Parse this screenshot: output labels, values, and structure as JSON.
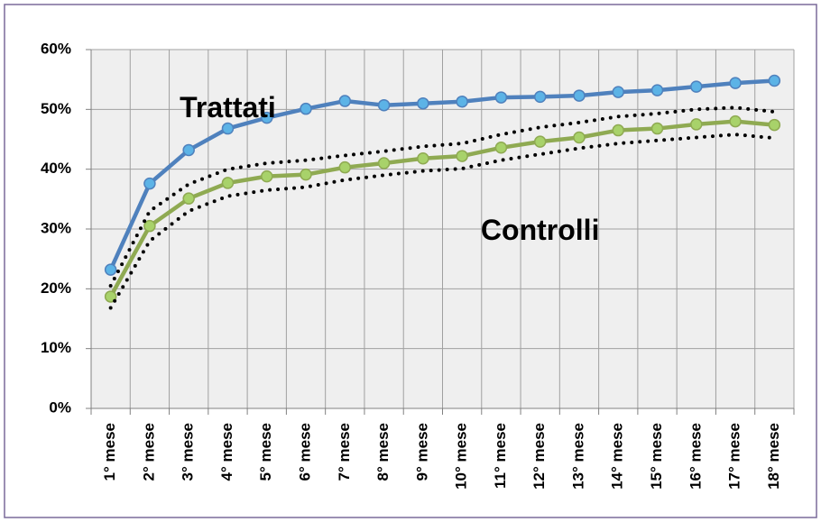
{
  "chart_data": {
    "type": "line",
    "categories": [
      "1° mese",
      "2° mese",
      "3° mese",
      "4° mese",
      "5° mese",
      "6° mese",
      "7° mese",
      "8° mese",
      "9° mese",
      "10° mese",
      "11° mese",
      "12° mese",
      "13° mese",
      "14° mese",
      "15° mese",
      "16° mese",
      "17° mese",
      "18° mese"
    ],
    "series": [
      {
        "color": "#4f81bd",
        "marker_color": "#5cb3e6",
        "style": "solid",
        "markers": true,
        "values": [
          23.2,
          37.6,
          43.2,
          46.8,
          48.6,
          50.1,
          51.4,
          50.7,
          51.0,
          51.3,
          52.0,
          52.1,
          52.3,
          52.9,
          53.2,
          53.8,
          54.4,
          54.8
        ]
      },
      {
        "color": "#8faa52",
        "marker_color": "#a8d26a",
        "style": "solid",
        "markers": true,
        "values": [
          18.7,
          30.5,
          35.1,
          37.7,
          38.8,
          39.1,
          40.3,
          41.0,
          41.8,
          42.2,
          43.6,
          44.6,
          45.3,
          46.5,
          46.8,
          47.5,
          48.0,
          47.4
        ]
      },
      {
        "color": "#000000",
        "style": "dotted",
        "markers": false,
        "values": [
          20.5,
          33.0,
          37.5,
          40.0,
          41.0,
          41.5,
          42.3,
          43.0,
          43.8,
          44.3,
          45.8,
          47.0,
          47.8,
          48.8,
          49.3,
          50.0,
          50.3,
          49.6
        ]
      },
      {
        "color": "#000000",
        "style": "dotted",
        "markers": false,
        "values": [
          16.8,
          28.0,
          33.0,
          35.5,
          36.5,
          37.0,
          38.2,
          39.0,
          39.7,
          40.1,
          41.5,
          42.5,
          43.5,
          44.3,
          44.8,
          45.3,
          45.8,
          45.2
        ]
      }
    ],
    "ylim": [
      0,
      60
    ],
    "yticks": [
      {
        "value": 0,
        "label": "0%"
      },
      {
        "value": 10,
        "label": "10%"
      },
      {
        "value": 20,
        "label": "20%"
      },
      {
        "value": 30,
        "label": "30%"
      },
      {
        "value": 40,
        "label": "40%"
      },
      {
        "value": 50,
        "label": "50%"
      },
      {
        "value": 60,
        "label": "60%"
      }
    ],
    "grid": true,
    "annotations": [
      {
        "text": "Trattati",
        "category": 3,
        "y": 50
      },
      {
        "text": "Controlli",
        "category": 11,
        "y": 29.5
      }
    ]
  }
}
